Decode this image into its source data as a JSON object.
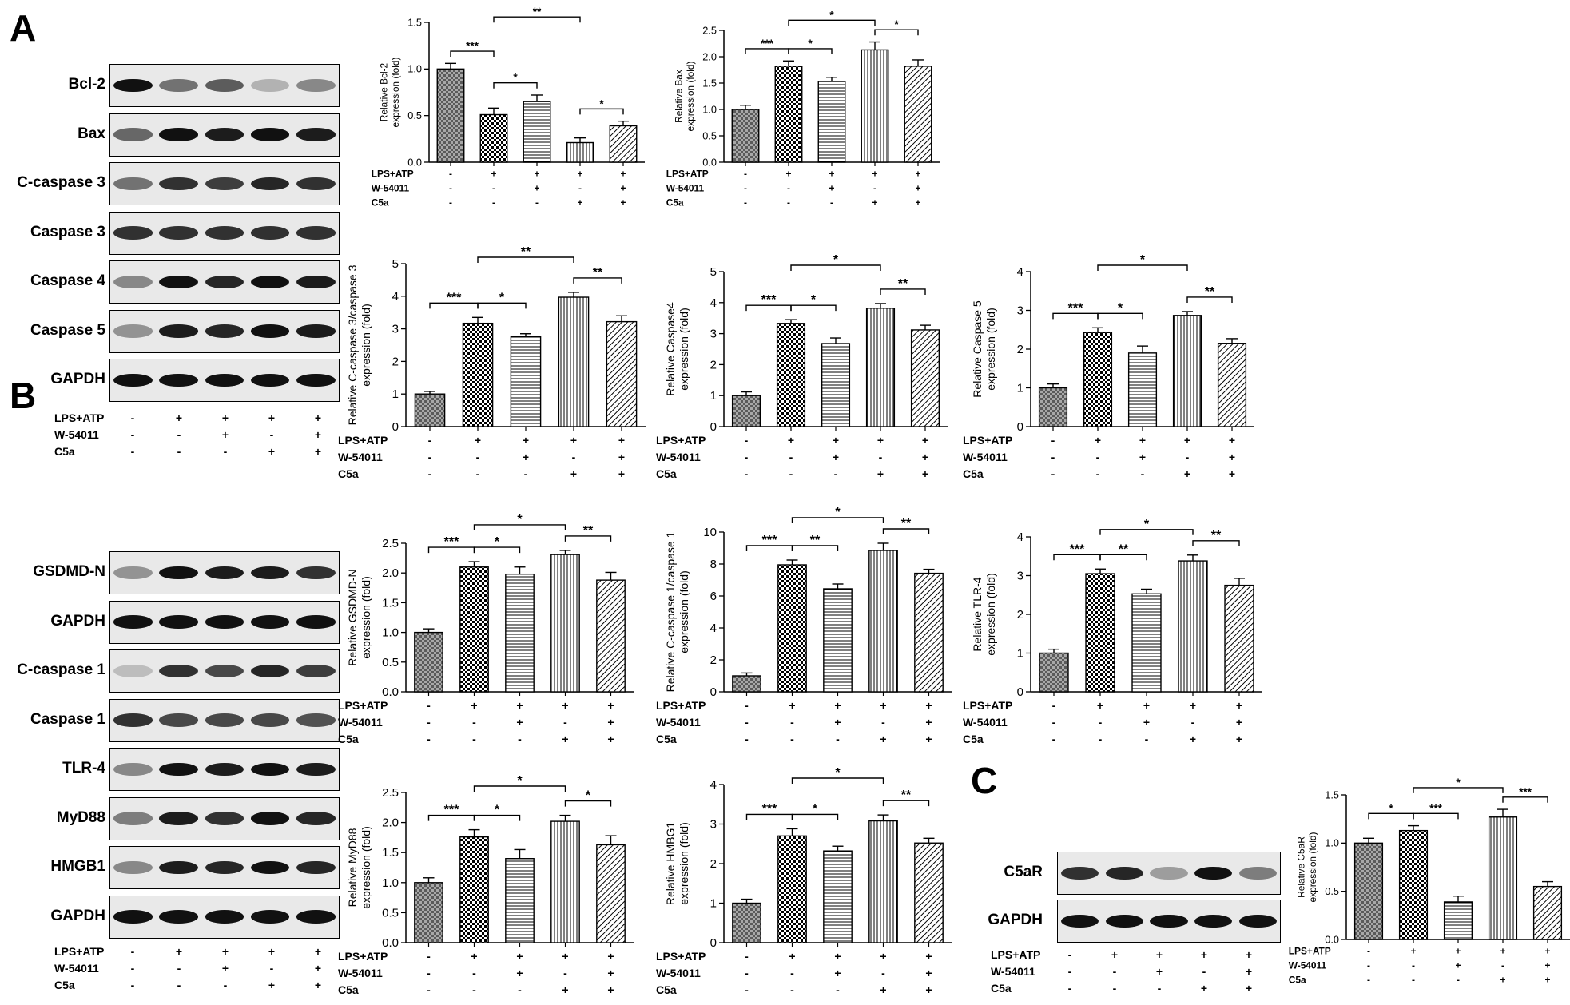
{
  "panels": {
    "a": "A",
    "b": "B",
    "c": "C"
  },
  "treatments": {
    "labels": [
      "LPS+ATP",
      "W-54011",
      "C5a"
    ],
    "signs": [
      [
        "-",
        "+",
        "+",
        "+",
        "+"
      ],
      [
        "-",
        "-",
        "+",
        "-",
        "+"
      ],
      [
        "-",
        "-",
        "-",
        "+",
        "+"
      ]
    ]
  },
  "blots": {
    "a": [
      "Bcl-2",
      "Bax",
      "C-caspase 3",
      "Caspase 3",
      "Caspase 4",
      "Caspase 5",
      "GAPDH"
    ],
    "b": [
      "GSDMD-N",
      "GAPDH",
      "C-caspase 1",
      "Caspase 1",
      "TLR-4",
      "MyD88",
      "HMGB1",
      "GAPDH"
    ],
    "c": [
      "C5aR",
      "GAPDH"
    ]
  },
  "blot_intensities": {
    "a": [
      [
        1.0,
        0.55,
        0.65,
        0.25,
        0.45
      ],
      [
        0.6,
        1.0,
        0.95,
        1.0,
        0.95
      ],
      [
        0.55,
        0.85,
        0.8,
        0.9,
        0.85
      ],
      [
        0.85,
        0.85,
        0.85,
        0.85,
        0.85
      ],
      [
        0.45,
        1.0,
        0.9,
        1.0,
        0.95
      ],
      [
        0.4,
        0.95,
        0.9,
        1.0,
        0.95
      ],
      [
        1.0,
        1.0,
        1.0,
        1.0,
        1.0
      ]
    ],
    "b": [
      [
        0.4,
        1.0,
        0.95,
        0.95,
        0.85
      ],
      [
        1.0,
        1.0,
        1.0,
        1.0,
        1.0
      ],
      [
        0.2,
        0.85,
        0.75,
        0.9,
        0.8
      ],
      [
        0.85,
        0.75,
        0.75,
        0.75,
        0.7
      ],
      [
        0.45,
        1.0,
        0.95,
        1.0,
        0.95
      ],
      [
        0.5,
        0.95,
        0.85,
        1.0,
        0.9
      ],
      [
        0.45,
        0.95,
        0.9,
        1.0,
        0.9
      ],
      [
        1.0,
        1.0,
        1.0,
        1.0,
        1.0
      ]
    ],
    "c": [
      [
        0.85,
        0.9,
        0.35,
        1.0,
        0.5
      ],
      [
        1.0,
        1.0,
        1.0,
        1.0,
        1.0
      ]
    ]
  },
  "chart_data": [
    {
      "id": "bcl2",
      "type": "bar",
      "ylabel": "Relative Bcl-2\nexpression (fold)",
      "values": [
        1.0,
        0.51,
        0.65,
        0.21,
        0.39
      ],
      "errors": [
        0.06,
        0.07,
        0.07,
        0.05,
        0.05
      ],
      "ylim": [
        0,
        1.5
      ],
      "ticks": [
        "0.0",
        "0.5",
        "1.0",
        "1.5"
      ],
      "sig": [
        {
          "from": 0,
          "to": 1,
          "label": "***"
        },
        {
          "from": 1,
          "to": 2,
          "label": "*"
        },
        {
          "from": 1,
          "to": 3,
          "label": "**"
        },
        {
          "from": 3,
          "to": 4,
          "label": "*"
        }
      ]
    },
    {
      "id": "bax",
      "type": "bar",
      "ylabel": "Relative Bax\nexpression (fold)",
      "values": [
        1.0,
        1.82,
        1.53,
        2.13,
        1.82
      ],
      "errors": [
        0.08,
        0.1,
        0.08,
        0.15,
        0.12
      ],
      "ylim": [
        0,
        2.5
      ],
      "ticks": [
        "0.0",
        "0.5",
        "1.0",
        "1.5",
        "2.0",
        "2.5"
      ],
      "sig": [
        {
          "from": 0,
          "to": 1,
          "label": "***"
        },
        {
          "from": 1,
          "to": 2,
          "label": "*"
        },
        {
          "from": 1,
          "to": 3,
          "label": "*"
        },
        {
          "from": 3,
          "to": 4,
          "label": "*"
        }
      ]
    },
    {
      "id": "ccasp3",
      "type": "bar",
      "ylabel": "Relative C-caspase 3/caspase 3\nexpression (fold)",
      "values": [
        1.0,
        3.17,
        2.77,
        3.97,
        3.22
      ],
      "errors": [
        0.08,
        0.18,
        0.08,
        0.15,
        0.18
      ],
      "ylim": [
        0,
        5
      ],
      "ticks": [
        "0",
        "1",
        "2",
        "3",
        "4",
        "5"
      ],
      "sig": [
        {
          "from": 0,
          "to": 1,
          "label": "***"
        },
        {
          "from": 1,
          "to": 2,
          "label": "*"
        },
        {
          "from": 1,
          "to": 3,
          "label": "**"
        },
        {
          "from": 3,
          "to": 4,
          "label": "**"
        }
      ]
    },
    {
      "id": "casp4",
      "type": "bar",
      "ylabel": "Relative Caspase4\nexpression (fold)",
      "values": [
        1.0,
        3.33,
        2.68,
        3.82,
        3.12
      ],
      "errors": [
        0.12,
        0.12,
        0.18,
        0.15,
        0.15
      ],
      "ylim": [
        0,
        5
      ],
      "ticks": [
        "0",
        "1",
        "2",
        "3",
        "4",
        "5"
      ],
      "sig": [
        {
          "from": 0,
          "to": 1,
          "label": "***"
        },
        {
          "from": 1,
          "to": 2,
          "label": "*"
        },
        {
          "from": 1,
          "to": 3,
          "label": "*"
        },
        {
          "from": 3,
          "to": 4,
          "label": "**"
        }
      ]
    },
    {
      "id": "casp5",
      "type": "bar",
      "ylabel": "Relative Caspase 5\nexpression (fold)",
      "values": [
        1.0,
        2.43,
        1.9,
        2.87,
        2.15
      ],
      "errors": [
        0.1,
        0.12,
        0.18,
        0.1,
        0.12
      ],
      "ylim": [
        0,
        4
      ],
      "ticks": [
        "0",
        "1",
        "2",
        "3",
        "4"
      ],
      "sig": [
        {
          "from": 0,
          "to": 1,
          "label": "***"
        },
        {
          "from": 1,
          "to": 2,
          "label": "*"
        },
        {
          "from": 1,
          "to": 3,
          "label": "*"
        },
        {
          "from": 3,
          "to": 4,
          "label": "**"
        }
      ]
    },
    {
      "id": "gsdmd",
      "type": "bar",
      "ylabel": "Relative GSDMD-N\nexpression (fold)",
      "values": [
        1.0,
        2.1,
        1.98,
        2.31,
        1.88
      ],
      "errors": [
        0.06,
        0.09,
        0.12,
        0.07,
        0.13
      ],
      "ylim": [
        0,
        2.5
      ],
      "ticks": [
        "0.0",
        "0.5",
        "1.0",
        "1.5",
        "2.0",
        "2.5"
      ],
      "sig": [
        {
          "from": 0,
          "to": 1,
          "label": "***"
        },
        {
          "from": 1,
          "to": 2,
          "label": "*"
        },
        {
          "from": 1,
          "to": 3,
          "label": "*"
        },
        {
          "from": 3,
          "to": 4,
          "label": "**"
        }
      ]
    },
    {
      "id": "ccasp1",
      "type": "bar",
      "ylabel": "Relative C-caspase 1/caspase 1\nexpression (fold)",
      "values": [
        1.0,
        7.95,
        6.45,
        8.85,
        7.42
      ],
      "errors": [
        0.18,
        0.3,
        0.3,
        0.45,
        0.25
      ],
      "ylim": [
        0,
        10
      ],
      "ticks": [
        "0",
        "2",
        "4",
        "6",
        "8",
        "10"
      ],
      "sig": [
        {
          "from": 0,
          "to": 1,
          "label": "***"
        },
        {
          "from": 1,
          "to": 2,
          "label": "**"
        },
        {
          "from": 1,
          "to": 3,
          "label": "*"
        },
        {
          "from": 3,
          "to": 4,
          "label": "**"
        }
      ]
    },
    {
      "id": "tlr4",
      "type": "bar",
      "ylabel": "Relative TLR-4\nexpression (fold)",
      "values": [
        1.0,
        3.05,
        2.53,
        3.38,
        2.75
      ],
      "errors": [
        0.1,
        0.12,
        0.12,
        0.15,
        0.18
      ],
      "ylim": [
        0,
        4
      ],
      "ticks": [
        "0",
        "1",
        "2",
        "3",
        "4"
      ],
      "sig": [
        {
          "from": 0,
          "to": 1,
          "label": "***"
        },
        {
          "from": 1,
          "to": 2,
          "label": "**"
        },
        {
          "from": 1,
          "to": 3,
          "label": "*"
        },
        {
          "from": 3,
          "to": 4,
          "label": "**"
        }
      ]
    },
    {
      "id": "myd88",
      "type": "bar",
      "ylabel": "Relative MyD88\nexpression (fold)",
      "values": [
        1.0,
        1.76,
        1.4,
        2.02,
        1.63
      ],
      "errors": [
        0.08,
        0.12,
        0.15,
        0.1,
        0.15
      ],
      "ylim": [
        0,
        2.5
      ],
      "ticks": [
        "0.0",
        "0.5",
        "1.0",
        "1.5",
        "2.0",
        "2.5"
      ],
      "sig": [
        {
          "from": 0,
          "to": 1,
          "label": "***"
        },
        {
          "from": 1,
          "to": 2,
          "label": "*"
        },
        {
          "from": 1,
          "to": 3,
          "label": "*"
        },
        {
          "from": 3,
          "to": 4,
          "label": "*"
        }
      ]
    },
    {
      "id": "hmgb1",
      "type": "bar",
      "ylabel": "Relative HMBG1\nexpression (fold)",
      "values": [
        1.0,
        2.7,
        2.32,
        3.08,
        2.52
      ],
      "errors": [
        0.1,
        0.18,
        0.12,
        0.15,
        0.12
      ],
      "ylim": [
        0,
        4
      ],
      "ticks": [
        "0",
        "1",
        "2",
        "3",
        "4"
      ],
      "sig": [
        {
          "from": 0,
          "to": 1,
          "label": "***"
        },
        {
          "from": 1,
          "to": 2,
          "label": "*"
        },
        {
          "from": 1,
          "to": 3,
          "label": "*"
        },
        {
          "from": 3,
          "to": 4,
          "label": "**"
        }
      ]
    },
    {
      "id": "c5ar",
      "type": "bar",
      "ylabel": "Relative C5aR\nexpression (fold)",
      "values": [
        1.0,
        1.13,
        0.39,
        1.27,
        0.55
      ],
      "errors": [
        0.05,
        0.05,
        0.06,
        0.08,
        0.05
      ],
      "ylim": [
        0,
        1.5
      ],
      "ticks": [
        "0.0",
        "0.5",
        "1.0",
        "1.5"
      ],
      "sig": [
        {
          "from": 0,
          "to": 1,
          "label": "*"
        },
        {
          "from": 1,
          "to": 2,
          "label": "***"
        },
        {
          "from": 1,
          "to": 3,
          "label": "*"
        },
        {
          "from": 3,
          "to": 4,
          "label": "***"
        }
      ]
    }
  ]
}
